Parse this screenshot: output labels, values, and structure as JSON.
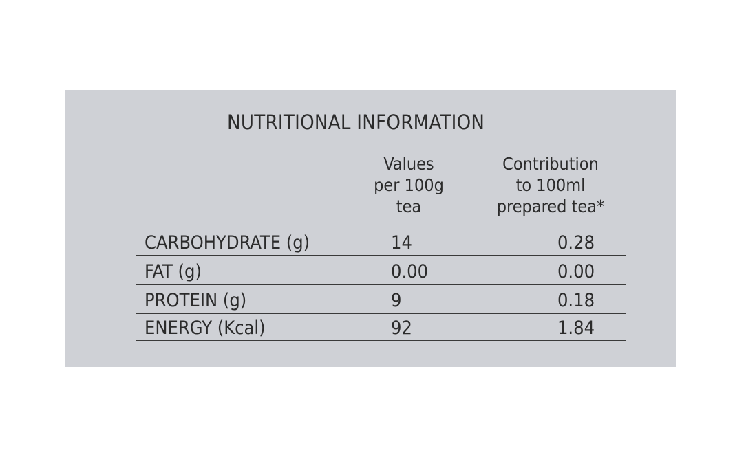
{
  "document": {
    "title": "NUTRITIONAL INFORMATION",
    "columns": {
      "values_header": [
        "Values",
        "per 100g",
        "tea"
      ],
      "contribution_header": [
        "Contribution",
        "to 100ml",
        "prepared tea*"
      ]
    },
    "rows": [
      {
        "label": "CARBOHYDRATE (g)",
        "per_100g": "14",
        "per_100ml": "0.28"
      },
      {
        "label": "FAT (g)",
        "per_100g": "0.00",
        "per_100ml": "0.00"
      },
      {
        "label": "PROTEIN (g)",
        "per_100g": "9",
        "per_100ml": "0.18"
      },
      {
        "label": "ENERGY (Kcal)",
        "per_100g": "92",
        "per_100ml": "1.84"
      }
    ]
  },
  "colors": {
    "panel_background": "#cfd1d6",
    "text": "#2b2b2b",
    "page_background": "#ffffff"
  }
}
